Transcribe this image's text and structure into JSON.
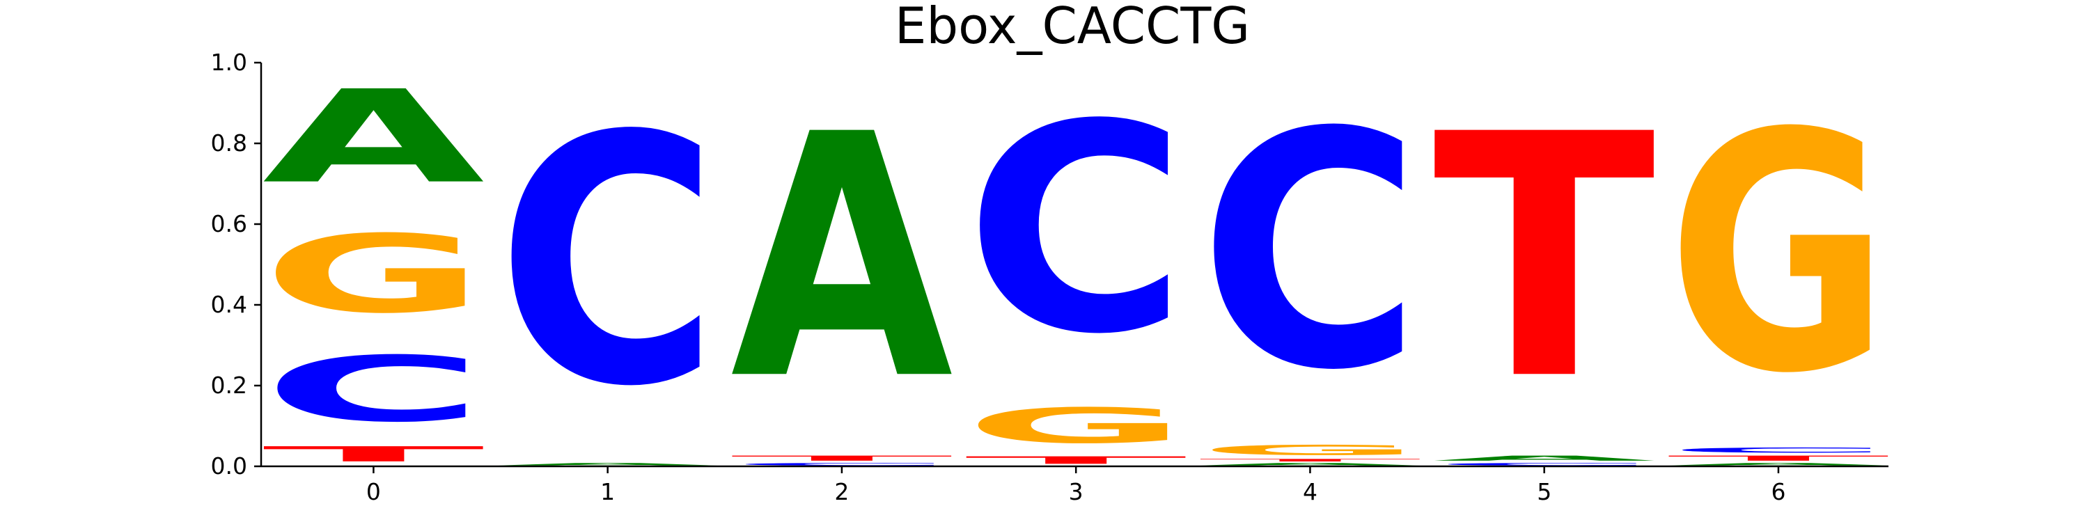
{
  "chart_data": {
    "type": "sequence-logo",
    "title": "Ebox_CACCTG",
    "xlabel": "",
    "ylabel": "",
    "ylim": [
      0,
      1.0
    ],
    "y_ticks": [
      "0.0",
      "0.2",
      "0.4",
      "0.6",
      "0.8",
      "1.0"
    ],
    "x_ticks": [
      "0",
      "1",
      "2",
      "3",
      "4",
      "5",
      "6"
    ],
    "grid": false,
    "colors": {
      "A": "#008000",
      "C": "#0000ff",
      "G": "#ffa500",
      "T": "#ff0000"
    },
    "positions": [
      {
        "x": "0",
        "stack": [
          {
            "letter": "T",
            "value": 0.06
          },
          {
            "letter": "C",
            "value": 0.26
          },
          {
            "letter": "G",
            "value": 0.31
          },
          {
            "letter": "A",
            "value": 0.37
          }
        ]
      },
      {
        "x": "1",
        "stack": [
          {
            "letter": "A",
            "value": 0.01
          },
          {
            "letter": "C",
            "value": 0.99
          }
        ]
      },
      {
        "x": "2",
        "stack": [
          {
            "letter": "C",
            "value": 0.01
          },
          {
            "letter": "T",
            "value": 0.02
          },
          {
            "letter": "A",
            "value": 0.97
          }
        ]
      },
      {
        "x": "3",
        "stack": [
          {
            "letter": "T",
            "value": 0.03
          },
          {
            "letter": "G",
            "value": 0.14
          },
          {
            "letter": "C",
            "value": 0.83
          }
        ]
      },
      {
        "x": "4",
        "stack": [
          {
            "letter": "A",
            "value": 0.01
          },
          {
            "letter": "T",
            "value": 0.01
          },
          {
            "letter": "G",
            "value": 0.04
          },
          {
            "letter": "C",
            "value": 0.94
          }
        ]
      },
      {
        "x": "5",
        "stack": [
          {
            "letter": "C",
            "value": 0.01
          },
          {
            "letter": "A",
            "value": 0.02
          },
          {
            "letter": "T",
            "value": 0.97
          }
        ]
      },
      {
        "x": "6",
        "stack": [
          {
            "letter": "A",
            "value": 0.01
          },
          {
            "letter": "T",
            "value": 0.02
          },
          {
            "letter": "C",
            "value": 0.02
          },
          {
            "letter": "G",
            "value": 0.95
          }
        ]
      }
    ]
  }
}
